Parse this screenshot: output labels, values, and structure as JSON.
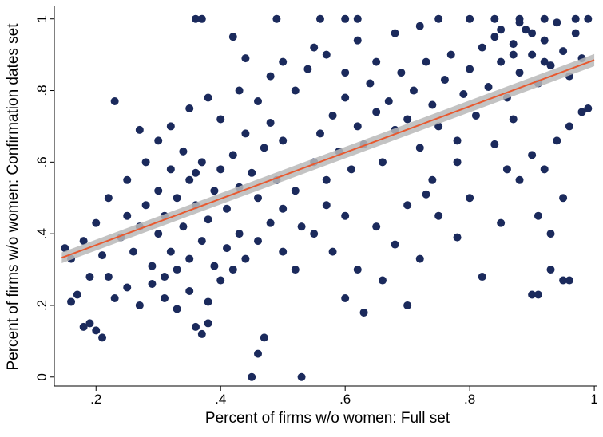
{
  "chart_data": {
    "type": "scatter",
    "x_label": "Percent of firms w/o women: Full set",
    "y_label": "Percent of firms w/o women: Confirmation dates set",
    "xlim": [
      0.133,
      1.005
    ],
    "ylim": [
      -0.025,
      1.035
    ],
    "xticks": [
      {
        "value": 0.2,
        "label": ".2"
      },
      {
        "value": 0.4,
        "label": ".4"
      },
      {
        "value": 0.6,
        "label": ".6"
      },
      {
        "value": 0.8,
        "label": ".8"
      },
      1
    ],
    "yticks": [
      0,
      {
        "value": 0.2,
        "label": ".2"
      },
      {
        "value": 0.4,
        "label": ".4"
      },
      {
        "value": 0.6,
        "label": ".6"
      },
      {
        "value": 0.8,
        "label": ".8"
      },
      1
    ],
    "series": [
      {
        "color": "#1b2a5c",
        "x": [
          0.45,
          0.53,
          0.46,
          0.47,
          0.36,
          0.37,
          0.38,
          0.36,
          0.37,
          0.23,
          0.27,
          0.15,
          0.16,
          0.17,
          0.19,
          0.2,
          0.21,
          0.18,
          0.9,
          0.91,
          0.95,
          0.96,
          0.93,
          0.99,
          0.75,
          0.8,
          0.84,
          0.88,
          0.92,
          0.97,
          0.56,
          0.6,
          0.62,
          0.49,
          0.42,
          0.44,
          0.55,
          0.98,
          0.99,
          0.87,
          0.73,
          0.3,
          0.31,
          0.32,
          0.33,
          0.34,
          0.35,
          0.36,
          0.37,
          0.38,
          0.39,
          0.4,
          0.41,
          0.42,
          0.43,
          0.44,
          0.45,
          0.46,
          0.47,
          0.48,
          0.49,
          0.5,
          0.33,
          0.35,
          0.37,
          0.39,
          0.41,
          0.43,
          0.36,
          0.34,
          0.32,
          0.3,
          0.28,
          0.27,
          0.25,
          0.24,
          0.26,
          0.29,
          0.31,
          0.22,
          0.23,
          0.25,
          0.27,
          0.29,
          0.31,
          0.33,
          0.35,
          0.38,
          0.4,
          0.42,
          0.44,
          0.46,
          0.48,
          0.5,
          0.52,
          0.55,
          0.56,
          0.57,
          0.58,
          0.59,
          0.6,
          0.61,
          0.62,
          0.63,
          0.64,
          0.65,
          0.66,
          0.67,
          0.68,
          0.69,
          0.7,
          0.71,
          0.72,
          0.73,
          0.74,
          0.75,
          0.76,
          0.77,
          0.78,
          0.79,
          0.8,
          0.81,
          0.82,
          0.83,
          0.84,
          0.85,
          0.86,
          0.87,
          0.88,
          0.89,
          0.9,
          0.91,
          0.92,
          0.93,
          0.94,
          0.95,
          0.96,
          0.97,
          0.98,
          0.85,
          0.88,
          0.9,
          0.92,
          0.87,
          0.55,
          0.58,
          0.6,
          0.62,
          0.65,
          0.68,
          0.7,
          0.72,
          0.75,
          0.78,
          0.8,
          0.82,
          0.85,
          0.88,
          0.9,
          0.92,
          0.94,
          0.96,
          0.7,
          0.66,
          0.6,
          0.63,
          0.52,
          0.53,
          0.5,
          0.57,
          0.78,
          0.74,
          0.84,
          0.86,
          0.93,
          0.95,
          0.91,
          0.3,
          0.32,
          0.35,
          0.38,
          0.4,
          0.43,
          0.46,
          0.48,
          0.5,
          0.52,
          0.54,
          0.57,
          0.62,
          0.65,
          0.68,
          0.72,
          0.6,
          0.25,
          0.28,
          0.22,
          0.2,
          0.18,
          0.16,
          0.19,
          0.21
        ],
        "y": [
          0,
          0,
          0.065,
          0.11,
          0.14,
          0.12,
          0.15,
          1,
          1,
          0.77,
          0.69,
          0.36,
          0.21,
          0.23,
          0.15,
          0.13,
          0.11,
          0.14,
          0.23,
          0.23,
          0.27,
          0.27,
          0.3,
          1,
          1,
          1,
          1,
          1,
          1,
          1,
          1,
          1,
          1,
          1,
          0.95,
          0.89,
          0.92,
          0.74,
          0.75,
          0.72,
          0.51,
          0.4,
          0.45,
          0.35,
          0.5,
          0.42,
          0.55,
          0.48,
          0.6,
          0.44,
          0.52,
          0.58,
          0.47,
          0.62,
          0.53,
          0.68,
          0.57,
          0.5,
          0.64,
          0.71,
          0.55,
          0.66,
          0.3,
          0.33,
          0.38,
          0.31,
          0.36,
          0.4,
          0.57,
          0.63,
          0.58,
          0.52,
          0.48,
          0.42,
          0.45,
          0.39,
          0.35,
          0.31,
          0.28,
          0.28,
          0.22,
          0.25,
          0.2,
          0.26,
          0.22,
          0.19,
          0.24,
          0.21,
          0.27,
          0.3,
          0.33,
          0.38,
          0.43,
          0.47,
          0.52,
          0.6,
          0.68,
          0.55,
          0.73,
          0.63,
          0.78,
          0.58,
          0.7,
          0.65,
          0.82,
          0.74,
          0.6,
          0.77,
          0.69,
          0.85,
          0.72,
          0.8,
          0.64,
          0.88,
          0.76,
          0.7,
          0.83,
          0.9,
          0.66,
          0.79,
          0.86,
          0.73,
          0.92,
          0.81,
          0.95,
          0.88,
          0.78,
          0.93,
          0.85,
          0.97,
          0.9,
          0.82,
          0.94,
          0.87,
          0.99,
          0.91,
          0.84,
          0.96,
          0.89,
          0.97,
          0.99,
          0.96,
          0.88,
          0.9,
          0.4,
          0.35,
          0.45,
          0.3,
          0.42,
          0.37,
          0.48,
          0.33,
          0.45,
          0.39,
          0.5,
          0.28,
          0.43,
          0.55,
          0.62,
          0.58,
          0.66,
          0.7,
          0.2,
          0.27,
          0.22,
          0.18,
          0.3,
          0.42,
          0.35,
          0.48,
          0.6,
          0.55,
          0.65,
          0.58,
          0.4,
          0.5,
          0.45,
          0.66,
          0.7,
          0.75,
          0.78,
          0.72,
          0.8,
          0.77,
          0.84,
          0.88,
          0.8,
          0.86,
          0.9,
          0.94,
          0.88,
          0.96,
          0.98,
          0.85,
          0.55,
          0.6,
          0.5,
          0.43,
          0.38,
          0.33,
          0.28,
          0.34
        ]
      }
    ],
    "fit": {
      "x": [
        0.145,
        1.0
      ],
      "y": [
        0.333,
        0.885
      ],
      "ci_lower": [
        0.318,
        0.868
      ],
      "ci_upper": [
        0.348,
        0.902
      ],
      "color": "#e8592f",
      "band_color": "#b9b9b9"
    }
  }
}
